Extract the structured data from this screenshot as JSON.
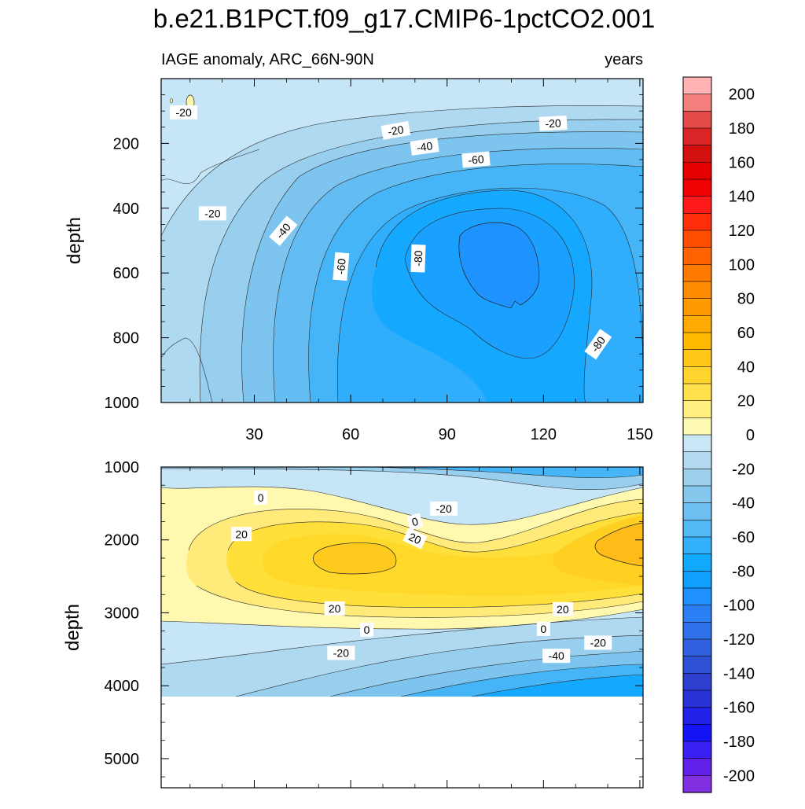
{
  "title": "b.e21.B1PCT.f09_g17.CMIP6-1pctCO2.001",
  "subtitle_left": "IAGE anomaly, ARC_66N-90N",
  "subtitle_right": "years",
  "chart_data": [
    {
      "type": "heatmap",
      "panel": "upper",
      "variable": "IAGE anomaly",
      "region": "ARC_66N-90N",
      "units": "years",
      "xlabel": "",
      "ylabel": "depth",
      "xlim": [
        1,
        151
      ],
      "ylim": [
        1000,
        0
      ],
      "xticks": [
        30,
        60,
        90,
        120,
        150
      ],
      "yticks": [
        200,
        400,
        600,
        800,
        1000
      ],
      "contour_labels": [
        {
          "x": 8,
          "y": 104,
          "value": "-20",
          "angle": 0
        },
        {
          "x": 17,
          "y": 416,
          "value": "-20",
          "angle": 0
        },
        {
          "x": 74,
          "y": 160,
          "value": "-20",
          "angle": -10
        },
        {
          "x": 123,
          "y": 138,
          "value": "-20",
          "angle": -3
        },
        {
          "x": 39,
          "y": 470,
          "value": "-40",
          "angle": -50
        },
        {
          "x": 83,
          "y": 210,
          "value": "-40",
          "angle": -8
        },
        {
          "x": 57,
          "y": 580,
          "value": "-60",
          "angle": -85
        },
        {
          "x": 99,
          "y": 250,
          "value": "-60",
          "angle": -5
        },
        {
          "x": 81,
          "y": 555,
          "value": "-80",
          "angle": -88
        },
        {
          "x": 137,
          "y": 820,
          "value": "-80",
          "angle": -55
        }
      ]
    },
    {
      "type": "heatmap",
      "panel": "lower",
      "variable": "IAGE anomaly",
      "region": "ARC_66N-90N",
      "units": "years",
      "xlabel": "",
      "ylabel": "depth",
      "xlim": [
        1,
        151
      ],
      "ylim": [
        5400,
        1000
      ],
      "xticks": [
        30,
        60,
        90,
        120,
        150
      ],
      "yticks": [
        1000,
        2000,
        3000,
        4000,
        5000
      ],
      "missing_below": 4100,
      "contour_labels": [
        {
          "x": 32,
          "y": 1420,
          "value": "0",
          "angle": 0
        },
        {
          "x": 26,
          "y": 1920,
          "value": "20",
          "angle": 0
        },
        {
          "x": 80,
          "y": 1750,
          "value": "0",
          "angle": -15
        },
        {
          "x": 89,
          "y": 1570,
          "value": "-20",
          "angle": 0
        },
        {
          "x": 80,
          "y": 1980,
          "value": "20",
          "angle": 25
        },
        {
          "x": 55,
          "y": 2940,
          "value": "20",
          "angle": 0
        },
        {
          "x": 126,
          "y": 2950,
          "value": "20",
          "angle": 0
        },
        {
          "x": 65,
          "y": 3230,
          "value": "0",
          "angle": 0
        },
        {
          "x": 120,
          "y": 3220,
          "value": "0",
          "angle": 0
        },
        {
          "x": 57,
          "y": 3550,
          "value": "-20",
          "angle": 0
        },
        {
          "x": 137,
          "y": 3410,
          "value": "-20",
          "angle": 0
        },
        {
          "x": 124,
          "y": 3590,
          "value": "-40",
          "angle": 0
        }
      ]
    }
  ],
  "colorbar": {
    "range": [
      -210,
      210
    ],
    "step": 10,
    "labels": [
      "200",
      "180",
      "160",
      "140",
      "120",
      "100",
      "80",
      "60",
      "40",
      "20",
      "0",
      "-20",
      "-40",
      "-60",
      "-80",
      "-100",
      "-120",
      "-140",
      "-160",
      "-180",
      "-200"
    ],
    "colors_top_to_bottom": [
      "#ffb3b3",
      "#f47f7f",
      "#e54a4a",
      "#d92525",
      "#d21010",
      "#e60000",
      "#f00000",
      "#ff1a1a",
      "#ff2e0a",
      "#ff4d00",
      "#ff6400",
      "#ff7a00",
      "#ff8c00",
      "#ff9a00",
      "#ffaa00",
      "#ffba00",
      "#ffc81a",
      "#ffd42e",
      "#ffe14d",
      "#fff080",
      "#fffab3",
      "#c8e6f5",
      "#b3daf0",
      "#9fd0ed",
      "#86c7ee",
      "#6ec0f0",
      "#52b9f5",
      "#33b1fb",
      "#12aaff",
      "#109eff",
      "#1e90ff",
      "#2a7ff4",
      "#3070e8",
      "#3060dd",
      "#3050d4",
      "#2e3fcf",
      "#2832d6",
      "#2020e6",
      "#1414f7",
      "#3a20f5",
      "#6020e8",
      "#8030e0"
    ]
  }
}
